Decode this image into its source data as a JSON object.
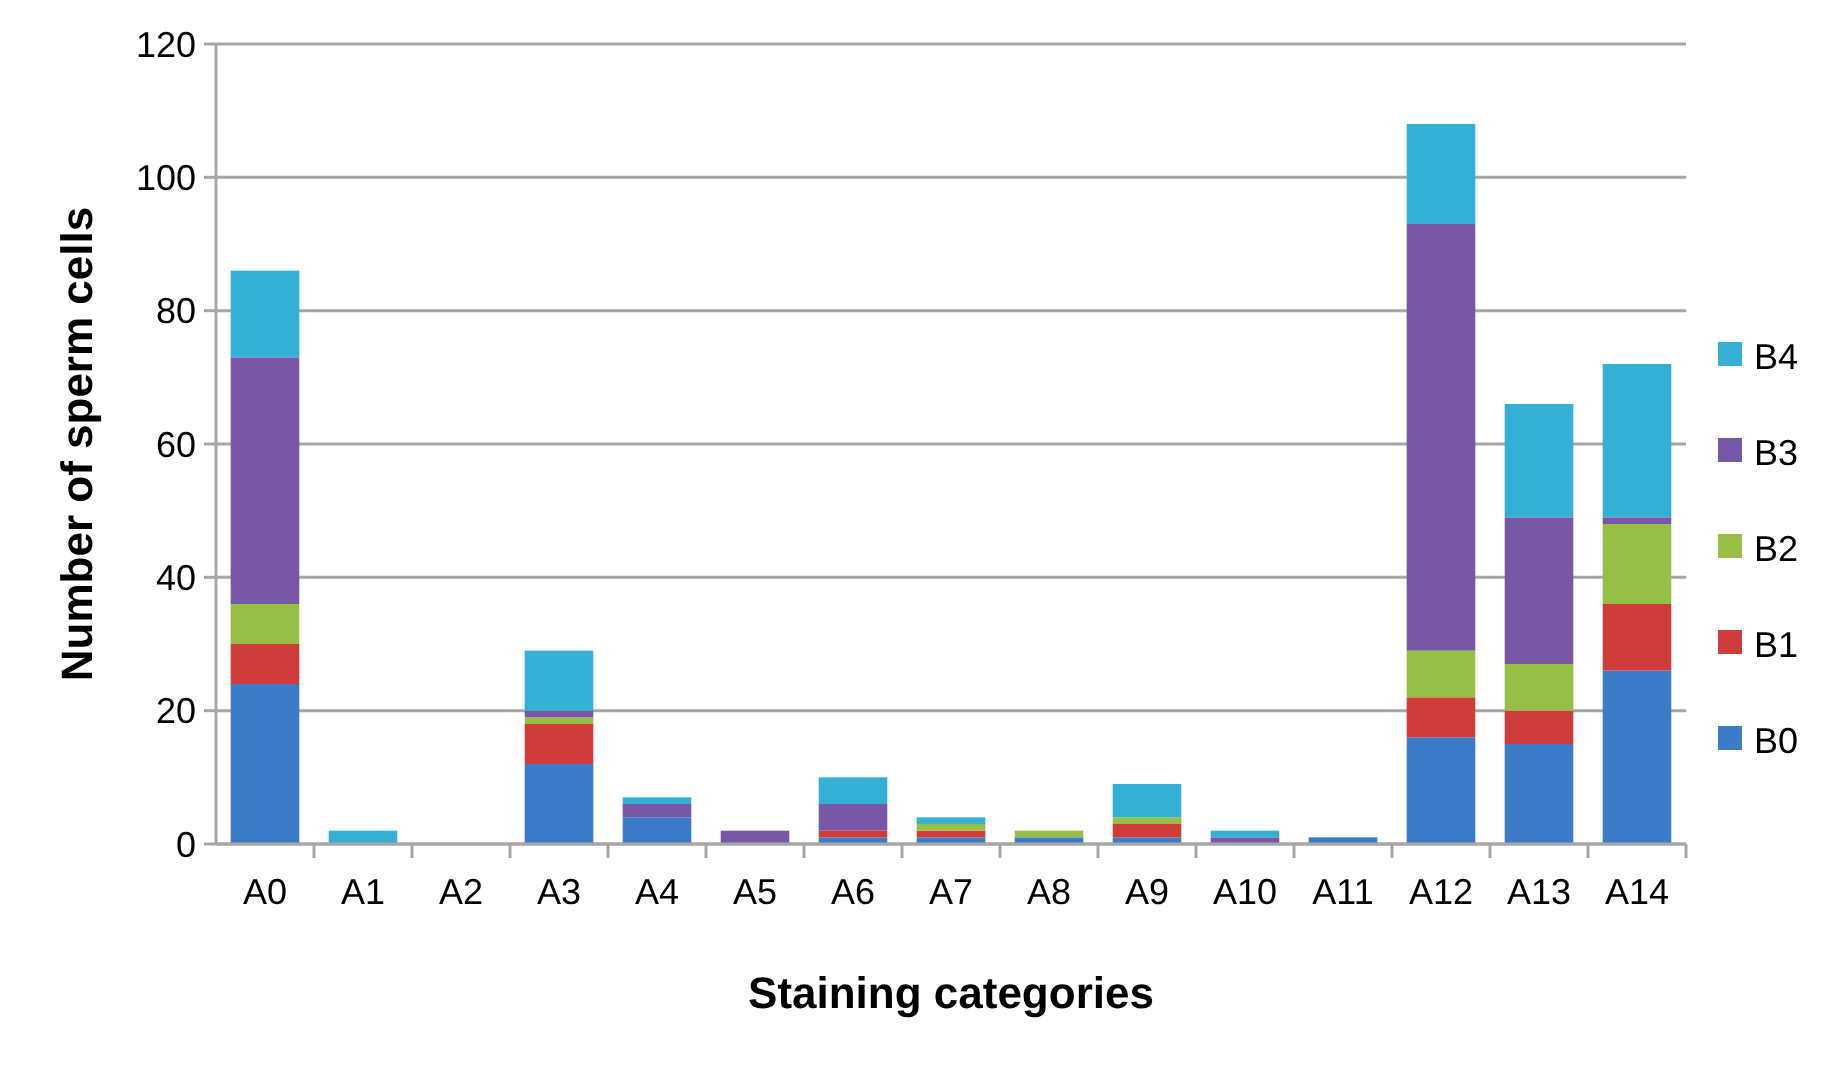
{
  "chart_data": {
    "type": "bar",
    "stacked": true,
    "xlabel": "Staining categories",
    "ylabel": "Number  of sperm cells",
    "categories": [
      "A0",
      "A1",
      "A2",
      "A3",
      "A4",
      "A5",
      "A6",
      "A7",
      "A8",
      "A9",
      "A10",
      "A11",
      "A12",
      "A13",
      "A14"
    ],
    "series": [
      {
        "name": "B0",
        "color": "#3c7bc8",
        "values": [
          24,
          0,
          0,
          12,
          4,
          0,
          1,
          1,
          1,
          1,
          0,
          1,
          16,
          15,
          26
        ]
      },
      {
        "name": "B1",
        "color": "#cf3d3b",
        "values": [
          6,
          0,
          0,
          6,
          0,
          0,
          1,
          1,
          0,
          2,
          0,
          0,
          6,
          5,
          10
        ]
      },
      {
        "name": "B2",
        "color": "#98bf45",
        "values": [
          6,
          0,
          0,
          1,
          0,
          0,
          0,
          1,
          1,
          1,
          0,
          0,
          7,
          7,
          12
        ]
      },
      {
        "name": "B3",
        "color": "#7658a6",
        "values": [
          37,
          0,
          0,
          1,
          2,
          2,
          4,
          0,
          0,
          0,
          1,
          0,
          64,
          22,
          1
        ]
      },
      {
        "name": "B4",
        "color": "#33b0d3",
        "values": [
          13,
          2,
          0,
          9,
          1,
          0,
          4,
          1,
          0,
          5,
          1,
          0,
          15,
          17,
          23
        ]
      }
    ],
    "ylim": [
      0,
      120
    ],
    "yticks": [
      0,
      20,
      40,
      60,
      80,
      100,
      120
    ],
    "grid": "y",
    "legend": "right"
  }
}
